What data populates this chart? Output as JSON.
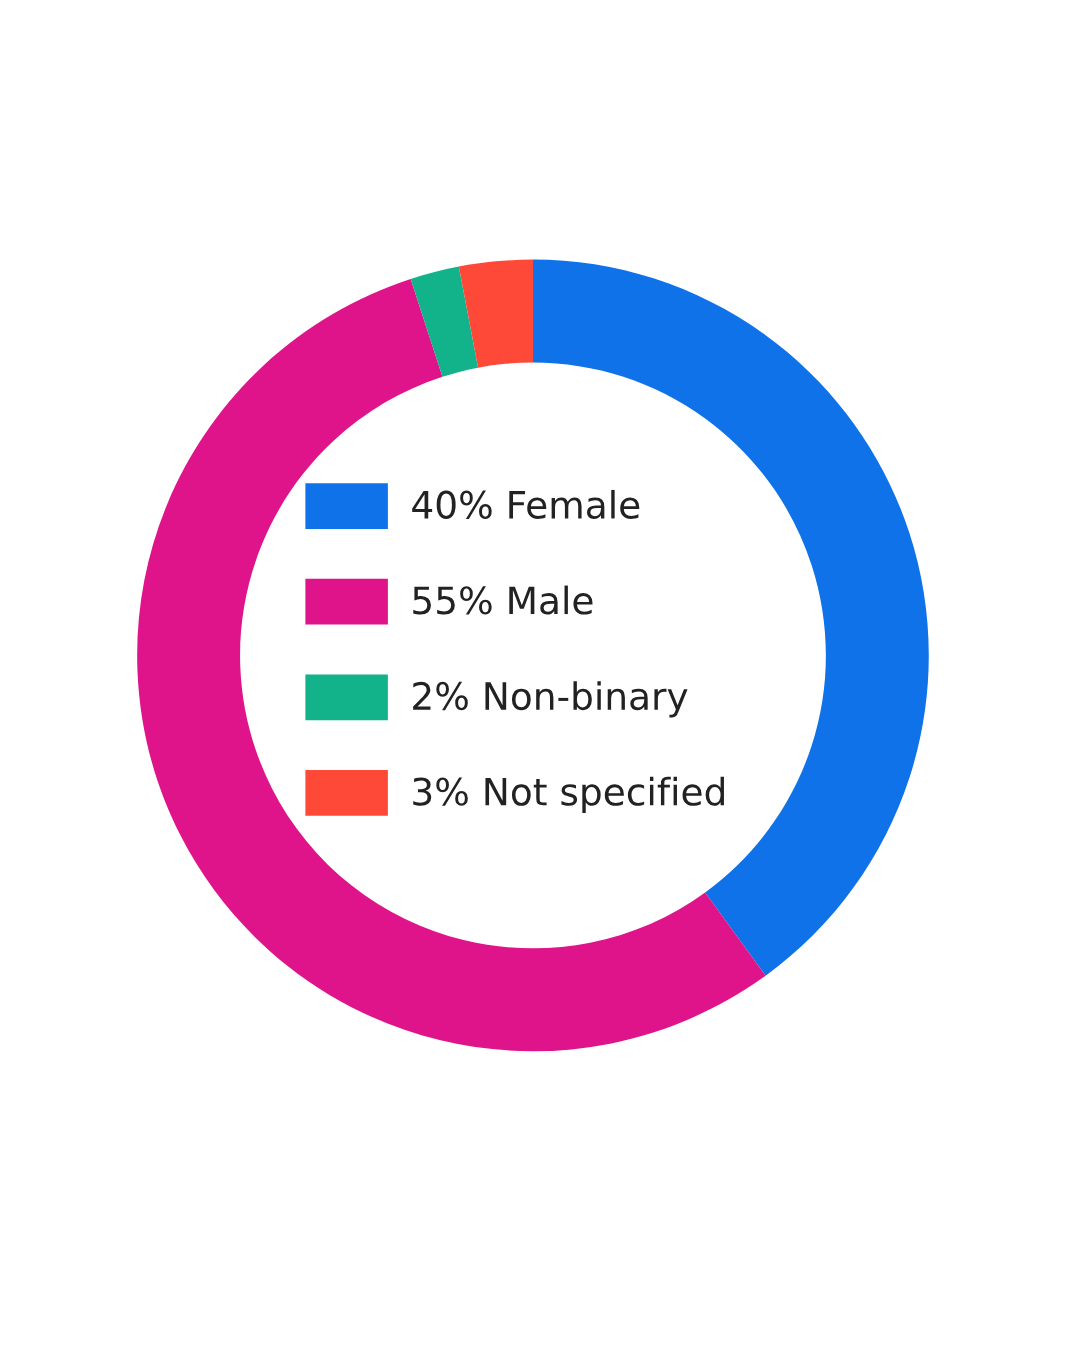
{
  "chart_data": {
    "type": "donut",
    "categories": [
      "Female",
      "Male",
      "Non-binary",
      "Not specified"
    ],
    "values": [
      40,
      55,
      2,
      3
    ],
    "value_labels": [
      "40%",
      "55%",
      "2%",
      "3%"
    ],
    "colors": [
      "#1072e8",
      "#df138a",
      "#12b28b",
      "#fe4938"
    ],
    "legend": "center"
  }
}
